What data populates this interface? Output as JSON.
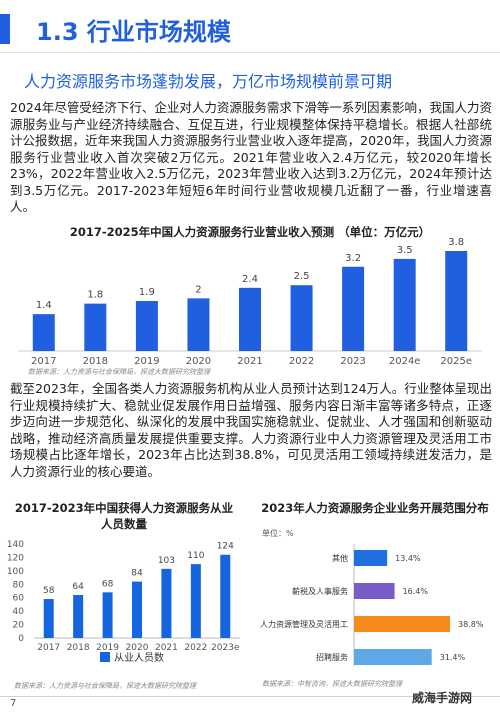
{
  "header": {
    "title": "1.3 行业市场规模",
    "subtitle": "人力资源服务市场蓬勃发展，万亿市场规模前景可期"
  },
  "paragraphs": [
    "2024年尽管受经济下行、企业对人力资源服务需求下滑等一系列因素影响，我国人力资源服务业与产业经济持续融合、互促互进，行业规模整体保持平稳增长。根据人社部统计公报数据，近年来我国人力资源服务行业营业收入逐年提高，2020年，我国人力资源服务行业营业收入首次突破2万亿元。2021年营业收入2.4万亿元，较2020年增长23%，2022年营业收入2.5万亿元，2023年营业收入达到3.2万亿元，2024年预计达到3.5万亿元。2017-2023年短短6年时间行业营收规模几近翻了一番，行业增速喜人。",
    "截至2023年，全国各类人力资源服务机构从业人员预计达到124万人。行业整体呈现出行业规模持续扩大、稳就业促发展作用日益增强、服务内容日渐丰富等诸多特点，正逐步迈向进一步规范化、纵深化的发展中我国实施稳就业、促就业、人才强国和创新驱动战略，推动经济高质量发展提供重要支撑。人力资源行业中人力资源管理及灵活用工市场规模占比逐年增长，2023年占比达到38.8%，可见灵活用工领域持续迸发活力，是人力资源行业的核心要道。"
  ],
  "chart_data": [
    {
      "type": "bar",
      "title": "2017-2025年中国人力资源服务行业营业收入预测 （单位：万亿元）",
      "categories": [
        "2017",
        "2018",
        "2019",
        "2020",
        "2021",
        "2022",
        "2023",
        "2024e",
        "2025e"
      ],
      "values": [
        1.4,
        1.8,
        1.9,
        2,
        2.4,
        2.5,
        3.2,
        3.5,
        3.8
      ],
      "color": "#1f5fe0",
      "source": "数据来源：人力资源与社会保障局，探迹大数据研究院整理"
    },
    {
      "type": "bar",
      "title": "2017-2023年中国获得人力资源服务从业人员数量",
      "categories": [
        "2017",
        "2018",
        "2019",
        "2020",
        "2021",
        "2022",
        "2023e"
      ],
      "series": [
        {
          "name": "从业人员数",
          "color": "#1565e0",
          "values": [
            58,
            64,
            68,
            84,
            103,
            110,
            124
          ]
        }
      ],
      "ylim": [
        0,
        140
      ],
      "yticks": [
        0,
        20,
        40,
        60,
        80,
        100,
        120,
        140
      ],
      "source": "数据来源：人力资源与社会保障局，探迹大数据研究院整理"
    },
    {
      "type": "hbar",
      "title": "2023年人力资源服务企业业务开展范围分布",
      "unit": "单位：%",
      "categories": [
        "其他",
        "薪税及人事服务",
        "人力资源管理及灵活用工",
        "招聘服务"
      ],
      "values": [
        13.4,
        16.4,
        38.8,
        31.4
      ],
      "value_labels": [
        "13.4%",
        "16.4%",
        "38.8%",
        "31.4%"
      ],
      "colors": [
        "#1f6fe0",
        "#7a5cc9",
        "#f58a1f",
        "#5fa8e8"
      ],
      "source": "数据来源：中智咨询，探迹大数据研究院整理"
    }
  ],
  "footer": {
    "page": "7",
    "watermark": "威海手游网"
  }
}
